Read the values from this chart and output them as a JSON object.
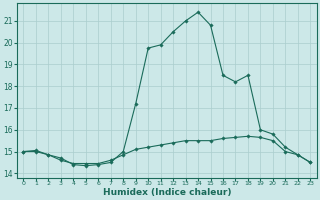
{
  "xlabel": "Humidex (Indice chaleur)",
  "bg_color": "#cce8e8",
  "grid_color": "#aacece",
  "line_color": "#1a6b5a",
  "xlim": [
    -0.5,
    23.5
  ],
  "ylim": [
    13.8,
    21.8
  ],
  "yticks": [
    14,
    15,
    16,
    17,
    18,
    19,
    20,
    21
  ],
  "xticks": [
    0,
    1,
    2,
    3,
    4,
    5,
    6,
    7,
    8,
    9,
    10,
    11,
    12,
    13,
    14,
    15,
    16,
    17,
    18,
    19,
    20,
    21,
    22,
    23
  ],
  "line1_x": [
    0,
    1,
    2,
    3,
    4,
    5,
    6,
    7,
    8,
    9,
    10,
    11,
    12,
    13,
    14,
    15,
    16,
    17,
    18,
    19,
    20,
    21,
    22,
    23
  ],
  "line1_y": [
    15.0,
    15.0,
    14.85,
    14.6,
    14.45,
    14.45,
    14.45,
    14.6,
    14.85,
    15.1,
    15.2,
    15.3,
    15.4,
    15.5,
    15.5,
    15.5,
    15.6,
    15.65,
    15.7,
    15.65,
    15.5,
    15.0,
    14.85,
    14.5
  ],
  "line2_x": [
    0,
    1,
    2,
    3,
    4,
    5,
    6,
    7,
    8,
    9,
    10,
    11,
    12,
    13,
    14,
    15,
    16,
    17,
    18,
    19,
    20,
    21,
    22,
    23
  ],
  "line2_y": [
    15.0,
    15.05,
    14.85,
    14.7,
    14.4,
    14.35,
    14.4,
    14.5,
    15.0,
    17.2,
    19.75,
    19.9,
    20.5,
    21.0,
    21.4,
    20.8,
    18.5,
    18.2,
    18.5,
    16.0,
    15.8,
    15.2,
    14.85,
    14.5
  ]
}
